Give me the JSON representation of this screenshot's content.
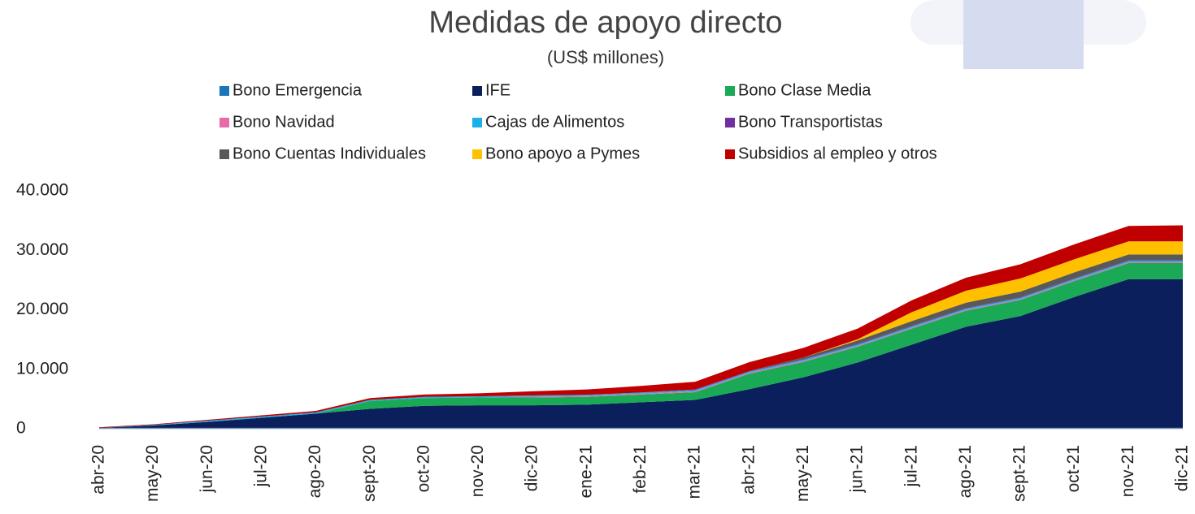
{
  "chart_data": {
    "type": "stacked_area",
    "title": "Medidas de apoyo directo",
    "subtitle": "(US$ millones)",
    "categories": [
      "abr-20",
      "may-20",
      "jun-20",
      "jul-20",
      "ago-20",
      "sept-20",
      "oct-20",
      "nov-20",
      "dic-20",
      "ene-21",
      "feb-21",
      "mar-21",
      "abr-21",
      "may-21",
      "jun-21",
      "jul-21",
      "ago-21",
      "sept-21",
      "oct-21",
      "nov-21",
      "dic-21"
    ],
    "series": [
      {
        "name": "Bono Emergencia",
        "color": "#1b75bb",
        "values": [
          150,
          150,
          150,
          150,
          150,
          150,
          150,
          150,
          150,
          150,
          150,
          150,
          150,
          150,
          150,
          150,
          150,
          150,
          150,
          150,
          150
        ]
      },
      {
        "name": "IFE",
        "color": "#0a1f5c",
        "values": [
          0,
          400,
          1000,
          1700,
          2400,
          3200,
          3700,
          3800,
          3800,
          3900,
          4300,
          4700,
          6500,
          8500,
          11000,
          14000,
          17000,
          18800,
          22000,
          25000,
          25000
        ]
      },
      {
        "name": "Bono Clase Media",
        "color": "#1aaa55",
        "values": [
          0,
          0,
          0,
          0,
          0,
          1300,
          1300,
          1300,
          1300,
          1300,
          1300,
          1300,
          2600,
          2600,
          2650,
          2700,
          2700,
          2700,
          2700,
          2700,
          2700
        ]
      },
      {
        "name": "Bono Navidad",
        "color": "#e86ba8",
        "values": [
          0,
          0,
          0,
          0,
          0,
          0,
          0,
          0,
          150,
          150,
          150,
          150,
          150,
          150,
          150,
          150,
          150,
          150,
          150,
          150,
          150
        ]
      },
      {
        "name": "Cajas de Alimentos",
        "color": "#1ab0e8",
        "values": [
          0,
          100,
          200,
          200,
          200,
          200,
          200,
          200,
          200,
          200,
          200,
          200,
          200,
          200,
          200,
          200,
          200,
          200,
          200,
          200,
          200
        ]
      },
      {
        "name": "Bono Transportistas",
        "color": "#7030a0",
        "values": [
          0,
          0,
          0,
          0,
          0,
          0,
          0,
          0,
          0,
          0,
          0,
          100,
          100,
          100,
          100,
          100,
          100,
          100,
          100,
          100,
          100
        ]
      },
      {
        "name": "Bono Cuentas Individuales",
        "color": "#595959",
        "values": [
          0,
          0,
          0,
          0,
          0,
          0,
          0,
          0,
          0,
          0,
          0,
          0,
          0,
          300,
          600,
          800,
          900,
          950,
          1000,
          1000,
          1000
        ]
      },
      {
        "name": "Bono apoyo a Pymes",
        "color": "#ffc000",
        "values": [
          0,
          0,
          0,
          0,
          0,
          0,
          0,
          0,
          0,
          0,
          0,
          0,
          0,
          0,
          200,
          1500,
          2000,
          2200,
          2200,
          2200,
          2200
        ]
      },
      {
        "name": "Subsidios al empleo y otros",
        "color": "#c00000",
        "values": [
          100,
          100,
          150,
          200,
          250,
          300,
          400,
          500,
          700,
          900,
          1100,
          1300,
          1500,
          1600,
          1800,
          2000,
          2200,
          2400,
          2500,
          2600,
          2700
        ]
      }
    ],
    "ylim": [
      0,
      40000
    ],
    "yticks": [
      0,
      {
        "value": 10000,
        "label": "10.000"
      },
      {
        "value": 20000,
        "label": "20.000"
      },
      {
        "value": 30000,
        "label": "30.000"
      },
      {
        "value": 40000,
        "label": "40.000"
      }
    ]
  }
}
